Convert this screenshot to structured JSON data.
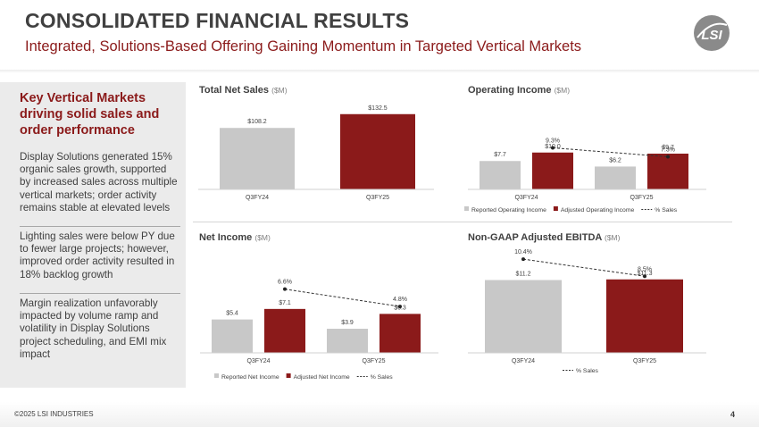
{
  "header": {
    "title": "CONSOLIDATED FINANCIAL RESULTS",
    "subtitle": "Integrated, Solutions-Based Offering Gaining Momentum in Targeted Vertical Markets",
    "logo_text": "LSI"
  },
  "sidebar": {
    "heading": "Key Vertical Markets driving solid sales and order performance",
    "points": [
      "Display Solutions generated 15% organic sales growth, supported by increased sales across multiple vertical markets; order activity remains stable at elevated levels",
      "Lighting sales were below PY due to fewer large projects; however, improved order activity resulted in 18% backlog growth",
      "Margin realization unfavorably impacted by volume ramp and volatility in Display Solutions project scheduling, and EMI mix  impact"
    ]
  },
  "colors": {
    "accent": "#8b1a1a",
    "gray_bar": "#c8c8c8",
    "text": "#404040"
  },
  "chart_data": [
    {
      "id": "total_net_sales",
      "type": "bar",
      "title": "Total Net Sales",
      "unit": "($M)",
      "categories": [
        "Q3FY24",
        "Q3FY25"
      ],
      "values": [
        108.2,
        132.5
      ],
      "labels": [
        "$108.2",
        "$132.5"
      ],
      "ylim": [
        0,
        140
      ]
    },
    {
      "id": "operating_income",
      "type": "bar",
      "title": "Operating Income",
      "unit": "($M)",
      "categories": [
        "Q3FY24",
        "Q3FY25"
      ],
      "series": [
        {
          "name": "Reported Operating Income",
          "values": [
            7.7,
            6.2
          ],
          "labels": [
            "$7.7",
            "$6.2"
          ]
        },
        {
          "name": "Adjusted Operating Income",
          "values": [
            10.0,
            9.7
          ],
          "labels": [
            "$10.0",
            "$9.7"
          ]
        }
      ],
      "line": {
        "name": "% Sales",
        "values": [
          9.3,
          7.3
        ],
        "labels": [
          "9.3%",
          "7.3%"
        ],
        "ylim": [
          0,
          10
        ]
      },
      "ylim": [
        0,
        16
      ],
      "legend": [
        "Reported Operating Income",
        "Adjusted Operating Income",
        "% Sales"
      ]
    },
    {
      "id": "net_income",
      "type": "bar",
      "title": "Net Income",
      "unit": "($M)",
      "categories": [
        "Q3FY24",
        "Q3FY25"
      ],
      "series": [
        {
          "name": "Reported Net Income",
          "values": [
            5.4,
            3.9
          ],
          "labels": [
            "$5.4",
            "$3.9"
          ]
        },
        {
          "name": "Adjusted Net Income",
          "values": [
            7.1,
            6.3
          ],
          "labels": [
            "$7.1",
            "$6.3"
          ]
        }
      ],
      "line": {
        "name": "% Sales",
        "values": [
          6.6,
          4.8
        ],
        "labels": [
          "6.6%",
          "4.8%"
        ],
        "ylim": [
          0,
          7.4
        ]
      },
      "ylim": [
        0,
        13
      ],
      "legend": [
        "Reported Net Income",
        "Adjusted Net Income",
        "% Sales"
      ]
    },
    {
      "id": "adjusted_ebitda",
      "type": "bar",
      "title": "Non-GAAP Adjusted EBITDA",
      "unit": "($M)",
      "categories": [
        "Q3FY24",
        "Q3FY25"
      ],
      "values": [
        11.2,
        11.3
      ],
      "labels": [
        "$11.2",
        "$11.3"
      ],
      "line": {
        "name": "% Sales",
        "values": [
          10.4,
          8.5
        ],
        "labels": [
          "10.4%",
          "8.5%"
        ],
        "ylim": [
          0,
          11.5
        ]
      },
      "ylim": [
        0,
        18
      ],
      "legend": [
        "% Sales"
      ]
    }
  ],
  "footer": {
    "copyright": "©2025 LSI INDUSTRIES",
    "page": "4"
  }
}
